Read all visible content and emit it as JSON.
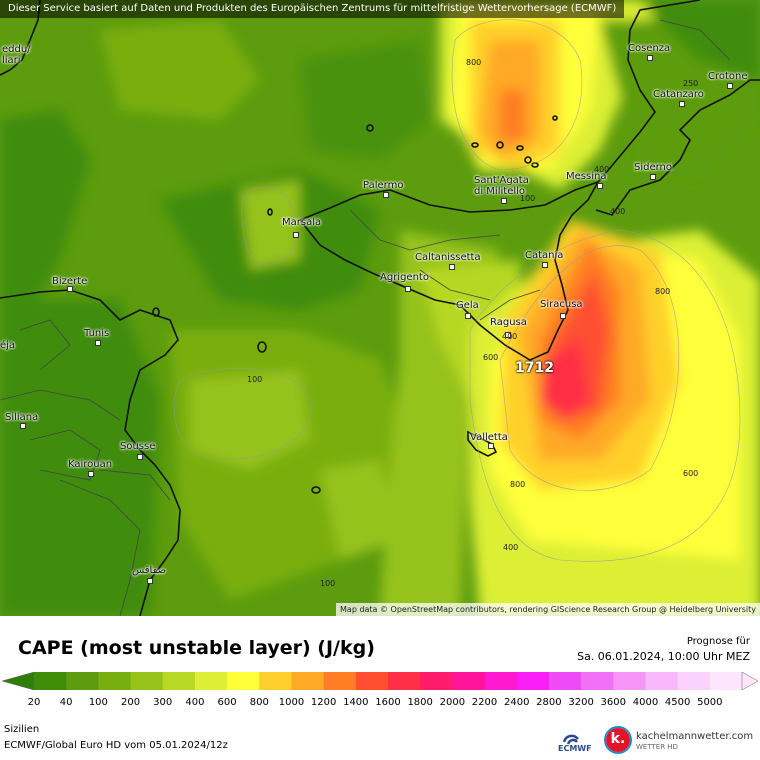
{
  "banner": "Dieser Service basiert auf Daten und Produkten des Europäischen Zentrums für mittelfristige Wettervorhersage (ECMWF)",
  "attribution": "Map data © OpenStreetMap contributors, rendering GIScience Research Group @ Heidelberg University",
  "cities": {
    "cagliari": "eddu/\nliari",
    "cosenza": "Cosenza",
    "crotone": "Crotone",
    "catanzaro": "Catanzaro",
    "siderno": "Siderno",
    "messina": "Messina",
    "santagata": "Sant'Agata\ndi Militello",
    "palermo": "Palermo",
    "marsala": "Marsala",
    "caltanissetta": "Caltanissetta",
    "catania": "Catania",
    "agrigento": "Agrigento",
    "gela": "Gela",
    "ragusa": "Ragusa",
    "siracusa": "Siracusa",
    "bizerte": "Bizerte",
    "tunis": "Tunis",
    "beja": "éja",
    "siliana": "Siliana",
    "sousse": "Sousse",
    "kairouan": "Kairouan",
    "valletta": "Valletta",
    "sfax": "صفاقس"
  },
  "contour_labels": {
    "c800_top": "800",
    "c250": "250",
    "c400_messina": "400",
    "c400_siderno": "400",
    "c100_sagata": "100",
    "c800_east": "800",
    "c600_ragusa": "600",
    "c400_ragusa": "400",
    "c100_west": "100",
    "c600_east": "600",
    "c800_south": "800",
    "c400_south": "400",
    "c100_south": "100"
  },
  "max_value": "1712",
  "legend": {
    "title": "CAPE (most unstable layer) (J/kg)",
    "forecast_label": "Prognose für",
    "forecast_time": "Sa. 06.01.2024, 10:00 Uhr MEZ",
    "region": "Sizilien",
    "model": "ECMWF/Global Euro HD vom  05.01.2024/12z",
    "ecmwf": "ECMWF",
    "brand": "kachelmannwetter.com",
    "brand_sub": "WETTER HD",
    "brand_letter": "k.",
    "scale": [
      {
        "label": "20",
        "color": "#3f8c08"
      },
      {
        "label": "40",
        "color": "#5c9c0e"
      },
      {
        "label": "100",
        "color": "#79ae10"
      },
      {
        "label": "200",
        "color": "#96c21a"
      },
      {
        "label": "300",
        "color": "#b7d824"
      },
      {
        "label": "400",
        "color": "#dcef34"
      },
      {
        "label": "600",
        "color": "#ffff3a"
      },
      {
        "label": "800",
        "color": "#ffd02c"
      },
      {
        "label": "1000",
        "color": "#ffa928"
      },
      {
        "label": "1200",
        "color": "#ff7d24"
      },
      {
        "label": "1400",
        "color": "#ff4f30"
      },
      {
        "label": "1600",
        "color": "#ff2d45"
      },
      {
        "label": "1800",
        "color": "#ff1b6a"
      },
      {
        "label": "2000",
        "color": "#ff149a"
      },
      {
        "label": "2200",
        "color": "#ff1ad0"
      },
      {
        "label": "2400",
        "color": "#f91ef6"
      },
      {
        "label": "2800",
        "color": "#f04af7"
      },
      {
        "label": "3200",
        "color": "#f070f6"
      },
      {
        "label": "3600",
        "color": "#f596f7"
      },
      {
        "label": "4000",
        "color": "#f8b8f9"
      },
      {
        "label": "4500",
        "color": "#fbd2fb"
      },
      {
        "label": "5000",
        "color": "#fde6fd"
      }
    ],
    "low_color": "#2e7d06"
  }
}
